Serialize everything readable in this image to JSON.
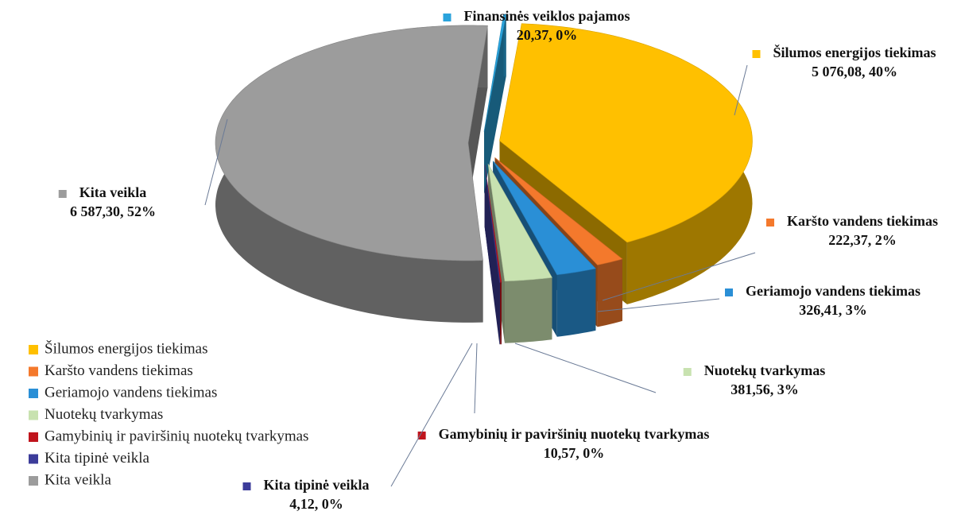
{
  "chart_data": {
    "type": "pie3d",
    "categories": [
      "Šilumos energijos tiekimas",
      "Karšto vandens tiekimas",
      "Geriamojo vandens tiekimas",
      "Nuotekų tvarkymas",
      "Gamybinių ir paviršinių nuotekų tvarkymas",
      "Kita tipinė veikla",
      "Kita veikla",
      "Finansinės veiklos pajamos"
    ],
    "values": [
      5076.08,
      222.37,
      326.41,
      381.56,
      10.57,
      4.12,
      6587.3,
      20.37
    ],
    "value_labels": [
      "5 076,08",
      "222,37",
      "326,41",
      "381,56",
      "10,57",
      "4,12",
      "6 587,30",
      "20,37"
    ],
    "percents": [
      40,
      2,
      3,
      3,
      0,
      0,
      52,
      0
    ],
    "percent_labels": [
      "40%",
      "2%",
      "3%",
      "3%",
      "0%",
      "0%",
      "52%",
      "0%"
    ],
    "colors": [
      "#ffc000",
      "#f4792c",
      "#2a8fd6",
      "#c8e2b0",
      "#c0141c",
      "#3c3c9a",
      "#9c9c9c",
      "#2aa3dc"
    ],
    "legend": [
      "Šilumos energijos tiekimas",
      "Karšto vandens tiekimas",
      "Geriamojo vandens tiekimas",
      "Nuotekų tvarkymas",
      "Gamybinių ir paviršinių nuotekų tvarkymas",
      "Kita tipinė veikla",
      "Kita veikla"
    ]
  }
}
